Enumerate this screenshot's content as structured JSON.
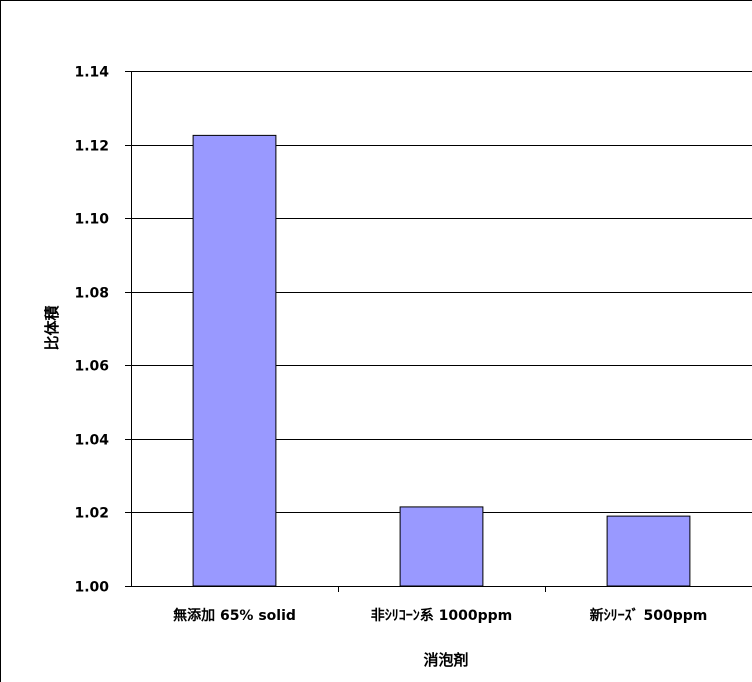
{
  "chart_data": {
    "type": "bar",
    "title": "",
    "xlabel": "消泡剤",
    "ylabel": "比体積",
    "ylim": [
      1.0,
      1.14
    ],
    "yticks": [
      "1.00",
      "1.02",
      "1.04",
      "1.06",
      "1.08",
      "1.10",
      "1.12",
      "1.14"
    ],
    "categories": [
      "無添加 65% solid",
      "非ｼﾘｺｰﾝ系 1000ppm",
      "新ｼﾘｰｽﾞ 500ppm"
    ],
    "values": [
      1.1225,
      1.0215,
      1.019
    ],
    "grid": true,
    "legend": "none",
    "bar_color": "#9999ff"
  }
}
